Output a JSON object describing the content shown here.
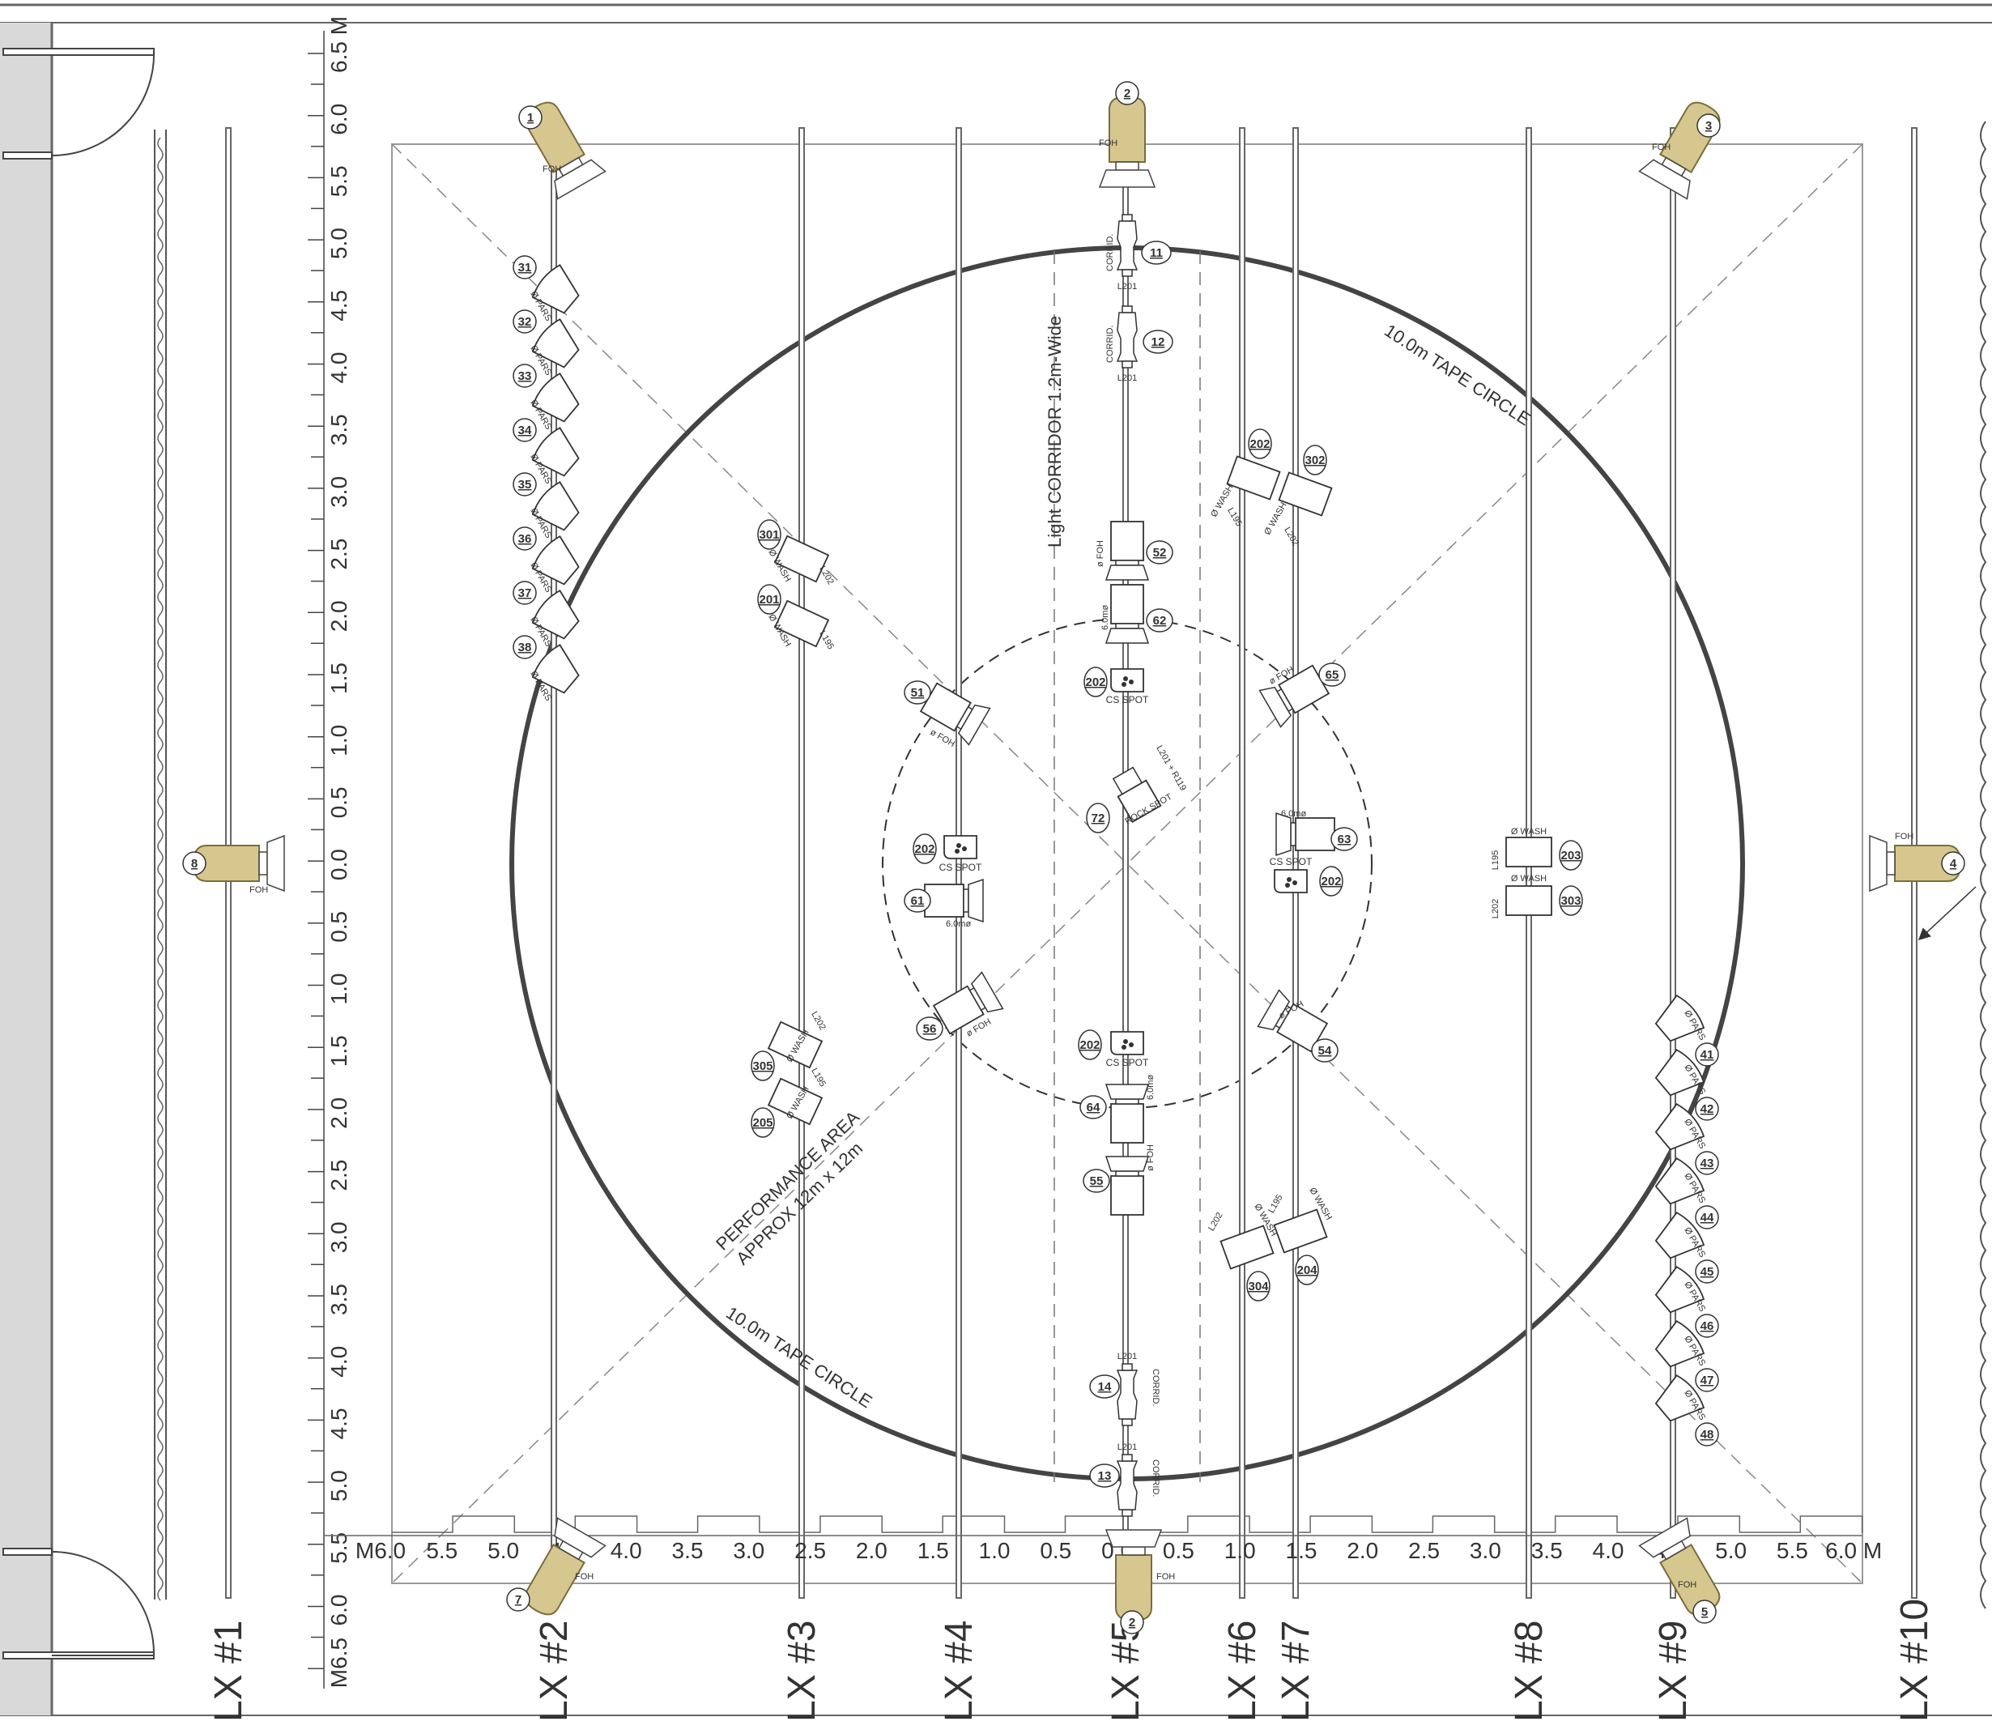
{
  "colors": {
    "line": "#555555",
    "pipe": "#666666",
    "foh_body": "#d6c78e",
    "foh_edge": "#7a6d3c",
    "wall": "#d9d9d9"
  },
  "pipes": [
    {
      "label": "LX #1"
    },
    {
      "label": "LX #2"
    },
    {
      "label": "LX #3"
    },
    {
      "label": "LX #4"
    },
    {
      "label": "LX #5"
    },
    {
      "label": "LX #6"
    },
    {
      "label": "LX #7"
    },
    {
      "label": "LX #8"
    },
    {
      "label": "LX #9"
    },
    {
      "label": "LX #10"
    }
  ],
  "left_scale": {
    "ticks": [
      "6.5 M",
      "6.0",
      "5.5",
      "5.0",
      "4.5",
      "4.0",
      "3.5",
      "3.0",
      "2.5",
      "2.0",
      "1.5",
      "1.0",
      "0.5",
      "0.0",
      "0.5",
      "1.0",
      "1.5",
      "2.0",
      "2.5",
      "3.0",
      "3.5",
      "4.0",
      "4.5",
      "5.0",
      "5.5",
      "6.0",
      "M6.5"
    ]
  },
  "bottom_scale": {
    "ticks": [
      "M6.0",
      "5.5",
      "5.0",
      "4.5",
      "4.0",
      "3.5",
      "3.0",
      "2.5",
      "2.0",
      "1.5",
      "1.0",
      "0.5",
      "0.0",
      "0.5",
      "1.0",
      "1.5",
      "2.0",
      "2.5",
      "3.0",
      "3.5",
      "4.0",
      "4.5",
      "5.0",
      "5.5",
      "6.0 M"
    ]
  },
  "annotations": {
    "tape_circle_top": "10.0m TAPE CIRCLE",
    "tape_circle_bottom": "10.0m TAPE CIRCLE",
    "corridor": "Light CORRIDOR 1.2m-Wide",
    "perf_line1": "PERFORMANCE AREA",
    "perf_line2": "APPROX 12m x 12m"
  },
  "fixtures": {
    "foh_big": [
      {
        "num": "1",
        "tag": "FOH"
      },
      {
        "num": "2",
        "tag": "FOH"
      },
      {
        "num": "3",
        "tag": "FOH"
      },
      {
        "num": "4",
        "tag": "FOH"
      },
      {
        "num": "5",
        "tag": "FOH"
      },
      {
        "num": "2",
        "tag": "FOH"
      },
      {
        "num": "7",
        "tag": "FOH"
      },
      {
        "num": "8",
        "tag": "FOH"
      }
    ],
    "pars_left": [
      "31",
      "32",
      "33",
      "34",
      "35",
      "36",
      "37",
      "38"
    ],
    "pars_right": [
      "41",
      "42",
      "43",
      "44",
      "45",
      "46",
      "47",
      "48"
    ],
    "pars_tag": "Ø PARS",
    "corridor_units": [
      {
        "num": "11",
        "tag": "CORRID.",
        "gel": "L201"
      },
      {
        "num": "12",
        "tag": "CORRID.",
        "gel": "L201"
      },
      {
        "num": "14",
        "tag": "CORRID.",
        "gel": "L201"
      },
      {
        "num": "13",
        "tag": "CORRID.",
        "gel": "L201"
      }
    ],
    "foh_units": [
      {
        "num": "52",
        "tag": "ø FOH"
      },
      {
        "num": "62",
        "tag": "6.0mø"
      },
      {
        "num": "64",
        "tag": "6.0mø"
      },
      {
        "num": "55",
        "tag": "ø FOH"
      },
      {
        "num": "51",
        "tag": "ø FOH"
      },
      {
        "num": "61",
        "tag": "6.0mø"
      },
      {
        "num": "56",
        "tag": "ø FOH"
      },
      {
        "num": "65",
        "tag": "ø FOH"
      },
      {
        "num": "63",
        "tag": "6.0mø"
      },
      {
        "num": "54",
        "tag": "ø FOH"
      }
    ],
    "spots": [
      {
        "num": "202",
        "tag": "CS SPOT"
      },
      {
        "num": "202",
        "tag": "CS SPOT"
      },
      {
        "num": "202",
        "tag": "CS SPOT"
      },
      {
        "num": "202",
        "tag": "CS SPOT"
      }
    ],
    "rock_spot": {
      "num": "72",
      "tag": "ROCK SPOT",
      "gel": "L201 + R119"
    },
    "washes": [
      {
        "num": "301",
        "tag": "Ø WASH",
        "gel": "L202"
      },
      {
        "num": "201",
        "tag": "Ø WASH",
        "gel": "L195"
      },
      {
        "num": "305",
        "tag": "Ø WASH",
        "gel": "L202"
      },
      {
        "num": "205",
        "tag": "Ø WASH",
        "gel": "L195"
      },
      {
        "num": "202",
        "tag": "Ø WASH",
        "gel": "L195"
      },
      {
        "num": "302",
        "tag": "Ø WASH",
        "gel": "L202"
      },
      {
        "num": "304",
        "tag": "Ø WASH",
        "gel": "L202"
      },
      {
        "num": "204",
        "tag": "Ø WASH",
        "gel": "L195"
      },
      {
        "num": "203",
        "tag": "Ø WASH",
        "gel": "L195"
      },
      {
        "num": "303",
        "tag": "Ø WASH",
        "gel": "L202"
      }
    ]
  }
}
